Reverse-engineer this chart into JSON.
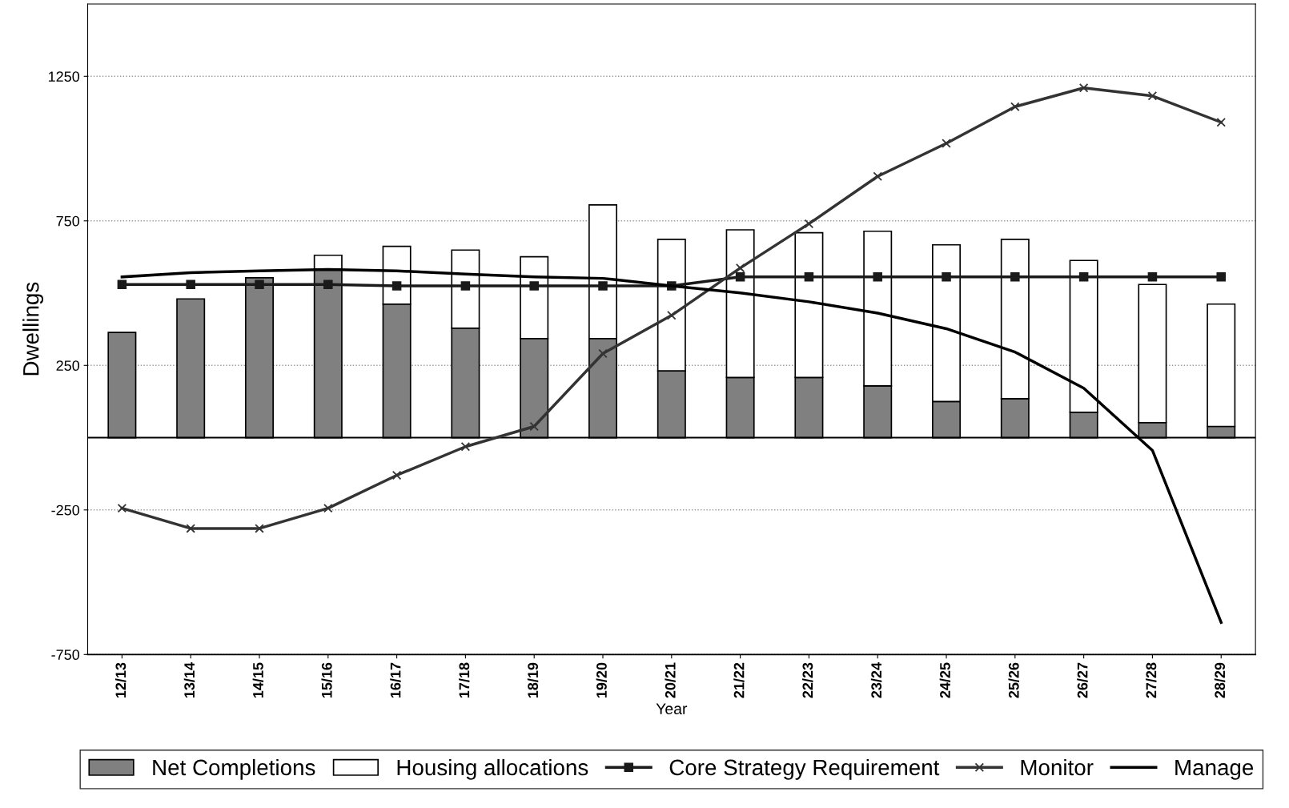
{
  "chart_data": {
    "type": "bar",
    "stacked": true,
    "xlabel": "Year",
    "ylabel": "Dwellings",
    "categories": [
      "12/13",
      "13/14",
      "14/15",
      "15/16",
      "16/17",
      "17/18",
      "18/19",
      "19/20",
      "20/21",
      "21/22",
      "22/23",
      "23/24",
      "24/25",
      "25/26",
      "26/27",
      "27/28",
      "28/29"
    ],
    "series": [
      {
        "name": "Net Completions",
        "color": "#808080",
        "values": [
          364,
          480,
          553,
          584,
          462,
          379,
          343,
          343,
          231,
          208,
          208,
          179,
          125,
          135,
          88,
          52,
          39
        ]
      },
      {
        "name": "Housing allocations",
        "color": "#ffffff",
        "values": [
          null,
          null,
          null,
          47,
          200,
          270,
          283,
          462,
          455,
          511,
          501,
          535,
          542,
          551,
          525,
          478,
          423
        ]
      },
      {
        "name": "Core Strategy Requirement",
        "type": "line",
        "color": "#1a1a1a",
        "marker": "square",
        "values": [
          530,
          530,
          530,
          530,
          525,
          525,
          525,
          525,
          525,
          556,
          556,
          556,
          556,
          556,
          556,
          556,
          556
        ]
      },
      {
        "name": "Monitor",
        "type": "line",
        "color": "#333333",
        "marker": "cross",
        "values": [
          -244,
          -314,
          -314,
          -244,
          -130,
          -31,
          39,
          291,
          423,
          587,
          740,
          904,
          1018,
          1145,
          1210,
          1182,
          1091
        ]
      },
      {
        "name": "Manage",
        "type": "line",
        "color": "#000000",
        "marker": "none",
        "values": [
          556,
          571,
          577,
          582,
          577,
          566,
          556,
          551,
          525,
          501,
          470,
          431,
          377,
          296,
          171,
          -44,
          -639
        ]
      }
    ],
    "ref_lines": [
      {
        "axis": "y",
        "value": 0,
        "color": "#000000"
      }
    ],
    "ylim": [
      -750,
      1500
    ],
    "yticks": [
      -750,
      -250,
      250,
      750,
      1250
    ],
    "grid": "y",
    "legend": "bottom"
  }
}
